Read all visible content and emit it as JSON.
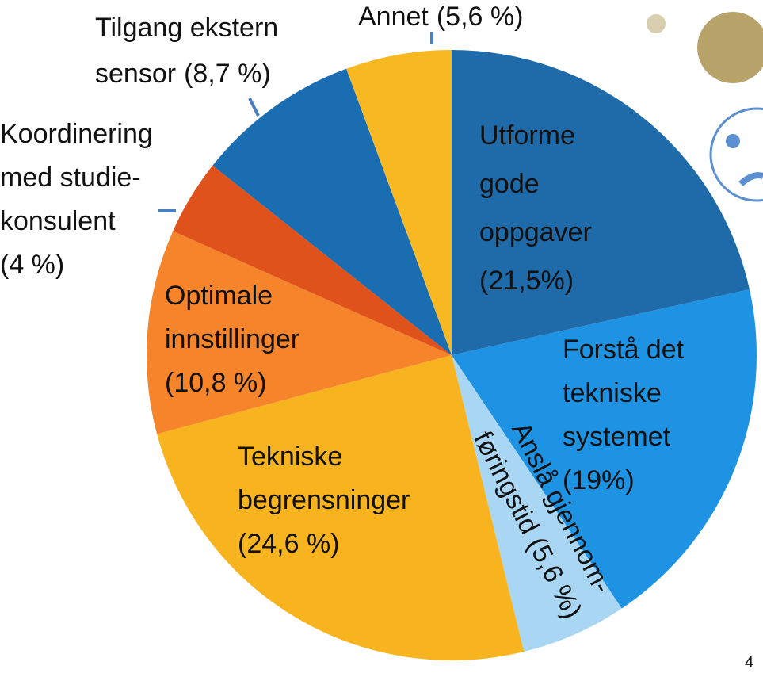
{
  "chart_data": {
    "type": "pie",
    "categories": [
      [
        "Utforme",
        "gode",
        "oppgaver"
      ],
      [
        "Forstå det",
        "tekniske",
        "systemet"
      ],
      [
        "Anslå gjennom-",
        "føringstid"
      ],
      [
        "Tekniske",
        "begrensninger"
      ],
      [
        "Optimale",
        "innstillinger"
      ],
      [
        "Koordinering",
        "med studie-",
        "konsulent"
      ],
      [
        "Tilgang ekstern",
        "sensor"
      ],
      [
        "Annet"
      ]
    ],
    "values": [
      21.5,
      19,
      5.6,
      24.6,
      10.8,
      4,
      8.7,
      5.6
    ],
    "value_labels": [
      "(21,5%)",
      "(19%)",
      "(5,6 %)",
      "(24,6 %)",
      "(10,8 %)",
      "(4 %)",
      "(8,7 %)",
      "(5,6 %)"
    ],
    "colors": [
      "#1f6aa8",
      "#1e92e3",
      "#a9d6f3",
      "#f8b41f",
      "#f5842b",
      "#e0521b",
      "#1b6db2",
      "#f8b822"
    ]
  },
  "page_number": "4"
}
